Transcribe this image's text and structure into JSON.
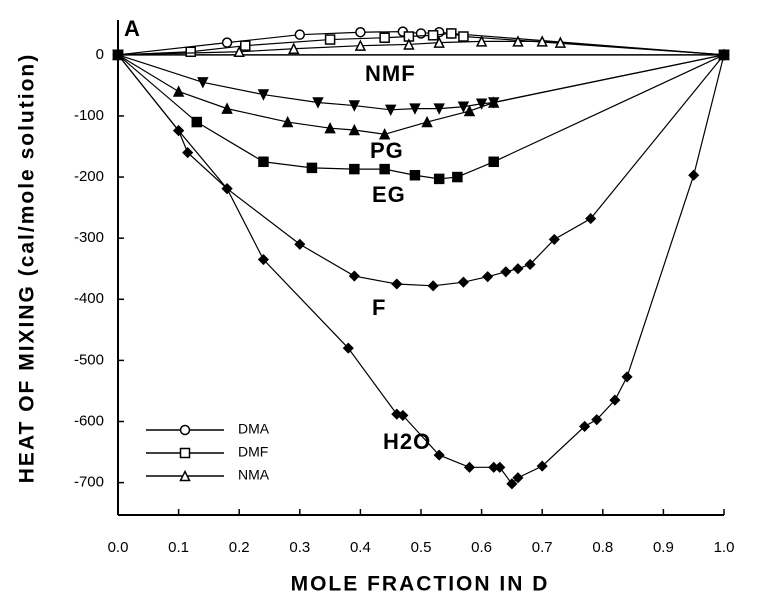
{
  "chart_data": {
    "type": "line",
    "x_label": "MOLE FRACTION IN D",
    "y_label": "HEAT OF MIXING (cal/mole solution)",
    "annotation": "A",
    "xlim": [
      0,
      1
    ],
    "ylim": [
      -753,
      57
    ],
    "xticks": [
      {
        "value": 0,
        "label": "0.0"
      },
      0.1,
      0.2,
      0.3,
      0.4,
      0.5,
      0.6,
      0.7,
      0.8,
      0.9,
      {
        "value": 1,
        "label": "1.0"
      }
    ],
    "yticks": [
      0,
      -100,
      -200,
      -300,
      -400,
      -500,
      -600,
      -700
    ],
    "series": [
      {
        "name": "DMA",
        "color": "#000000",
        "marker": "circle-open",
        "x": [
          0,
          0.18,
          0.3,
          0.4,
          0.47,
          0.5,
          0.53,
          0.55,
          1
        ],
        "values": [
          0,
          20,
          33,
          37,
          38,
          35,
          37,
          35,
          0
        ]
      },
      {
        "name": "DMF",
        "color": "#000000",
        "marker": "square-open",
        "x": [
          0,
          0.12,
          0.21,
          0.35,
          0.44,
          0.48,
          0.52,
          0.55,
          0.57,
          1
        ],
        "values": [
          0,
          5,
          15,
          25,
          28,
          30,
          32,
          35,
          30,
          0
        ]
      },
      {
        "name": "NMA",
        "color": "#000000",
        "marker": "triangle-open",
        "x": [
          0,
          0.2,
          0.29,
          0.4,
          0.48,
          0.53,
          0.6,
          0.66,
          0.7,
          0.73,
          1
        ],
        "values": [
          0,
          5,
          10,
          15,
          17,
          20,
          22,
          22,
          22,
          20,
          0
        ]
      },
      {
        "name": "NMF",
        "color": "#000000",
        "marker": "triangle-down-filled",
        "x": [
          0,
          0.14,
          0.24,
          0.33,
          0.39,
          0.45,
          0.49,
          0.53,
          0.57,
          0.6,
          0.62,
          1
        ],
        "values": [
          0,
          -45,
          -65,
          -78,
          -83,
          -90,
          -88,
          -88,
          -85,
          -80,
          -78,
          0
        ]
      },
      {
        "name": "PG",
        "color": "#000000",
        "marker": "triangle-filled",
        "x": [
          0,
          0.1,
          0.18,
          0.28,
          0.35,
          0.39,
          0.44,
          0.51,
          0.58,
          0.62,
          1
        ],
        "values": [
          0,
          -60,
          -88,
          -110,
          -120,
          -123,
          -130,
          -110,
          -92,
          -78,
          0
        ]
      },
      {
        "name": "EG",
        "color": "#000000",
        "marker": "square-filled",
        "x": [
          0,
          0.13,
          0.24,
          0.32,
          0.39,
          0.44,
          0.49,
          0.53,
          0.56,
          0.62,
          1
        ],
        "values": [
          0,
          -110,
          -175,
          -185,
          -187,
          -187,
          -197,
          -203,
          -200,
          -175,
          0
        ]
      },
      {
        "name": "F",
        "color": "#000000",
        "marker": "diamond-filled",
        "x": [
          0,
          0.1,
          0.18,
          0.3,
          0.39,
          0.46,
          0.52,
          0.57,
          0.61,
          0.64,
          0.66,
          0.68,
          0.72,
          0.78,
          1
        ],
        "values": [
          0,
          -124,
          -219,
          -310,
          -362,
          -375,
          -378,
          -372,
          -363,
          -355,
          -350,
          -343,
          -302,
          -268,
          0
        ]
      },
      {
        "name": "H2O",
        "color": "#000000",
        "marker": "diamond-filled",
        "x": [
          0,
          0.1,
          0.115,
          0.18,
          0.24,
          0.38,
          0.46,
          0.47,
          0.53,
          0.58,
          0.62,
          0.63,
          0.65,
          0.66,
          0.7,
          0.77,
          0.79,
          0.82,
          0.84,
          0.95,
          1
        ],
        "values": [
          0,
          -124,
          -160,
          -219,
          -335,
          -480,
          -588,
          -590,
          -655,
          -675,
          -675,
          -675,
          -702,
          -692,
          -673,
          -608,
          -597,
          -565,
          -527,
          -197,
          0
        ]
      }
    ]
  }
}
